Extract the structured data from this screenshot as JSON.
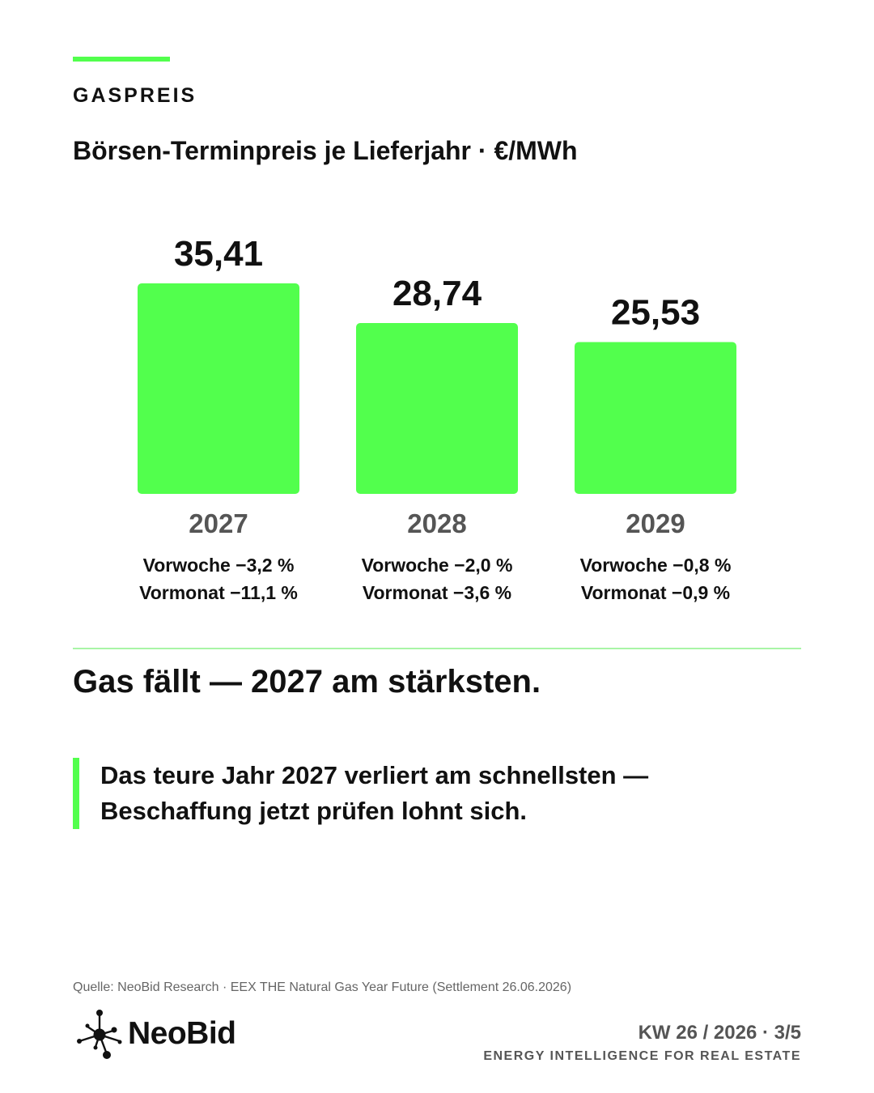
{
  "header": {
    "eyebrow": "GASPREIS",
    "subtitle": "Börsen-Terminpreis je Lieferjahr · €/MWh"
  },
  "colors": {
    "accent": "#52ff4d",
    "divider": "#a8f5a6",
    "text": "#111111",
    "muted": "#555555"
  },
  "chart_data": {
    "type": "bar",
    "title": "",
    "xlabel": "",
    "ylabel": "",
    "categories": [
      "2027",
      "2028",
      "2029"
    ],
    "values": [
      35.41,
      28.74,
      25.53
    ],
    "value_labels": [
      "35,41",
      "28,74",
      "25,53"
    ],
    "ylim": [
      0,
      35.41
    ],
    "grid": false,
    "annotations": [
      {
        "week": "Vorwoche −3,2 %",
        "month": "Vormonat −11,1 %"
      },
      {
        "week": "Vorwoche −2,0 %",
        "month": "Vormonat −3,6 %"
      },
      {
        "week": "Vorwoche −0,8 %",
        "month": "Vormonat −0,9 %"
      }
    ]
  },
  "headline": "Gas fällt — 2027 am stärksten.",
  "quote": "Das teure Jahr 2027 verliert am schnellsten — Beschaffung jetzt prüfen lohnt sich.",
  "footer": {
    "source": "Quelle: NeoBid Research · EEX THE Natural Gas Year Future (Settlement 26.06.2026)",
    "logo_text": "NeoBid",
    "logo_icon": "network-node-icon",
    "week": "KW 26 / 2026 · 3/5",
    "tagline": "ENERGY INTELLIGENCE FOR REAL ESTATE"
  }
}
